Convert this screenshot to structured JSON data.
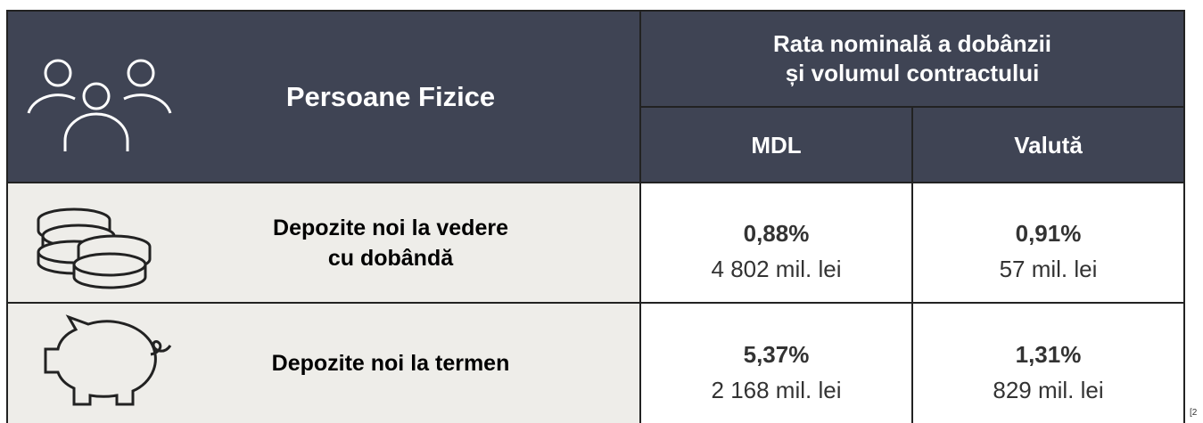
{
  "header": {
    "title": "Persoane Fizice",
    "group_title": [
      "Rata nominală a dobânzii",
      "și volumul contractului"
    ],
    "columns": [
      "MDL",
      "Valută"
    ]
  },
  "rows": [
    {
      "label": [
        "Depozite noi la vedere",
        "cu dobândă"
      ],
      "cells": [
        {
          "rate": "0,88%",
          "volume": "4 802 mil. lei"
        },
        {
          "rate": "0,91%",
          "volume": "57 mil. lei"
        }
      ]
    },
    {
      "label": [
        "Depozite noi la termen"
      ],
      "cells": [
        {
          "rate": "5,37%",
          "volume": "2 168 mil. lei"
        },
        {
          "rate": "1,31%",
          "volume": "829 mil. lei"
        }
      ]
    }
  ],
  "footnote": "[2"
}
